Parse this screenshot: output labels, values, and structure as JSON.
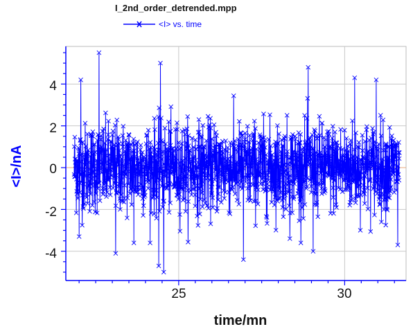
{
  "chart_data": {
    "type": "line",
    "title": "I_2nd_order_detrended.mpp",
    "xlabel": "time/mn",
    "ylabel": "<I>/nA",
    "xlim": [
      21.6,
      31.85
    ],
    "ylim": [
      -5.4,
      5.8
    ],
    "x_ticks": [
      25,
      30
    ],
    "x_tick_labels": [
      "25",
      "30"
    ],
    "y_ticks": [
      -4,
      -2,
      0,
      2,
      4
    ],
    "y_tick_labels": [
      "-4",
      "-2",
      "0",
      "2",
      "4"
    ],
    "grid": true,
    "legend_position": "top-left",
    "marker": "x",
    "colors": {
      "series": "#0000ff",
      "grid": "#c8c8c8",
      "axis": "#0000ff",
      "zero_line": "#e8a878",
      "text": "#111111"
    },
    "series": [
      {
        "name": "<I> vs. time",
        "x_start": 21.85,
        "x_end": 31.65,
        "points": 1500,
        "note_values": "dense noisy signal around 0 with std ~1.1",
        "highlight_points": [
          [
            22.6,
            5.5
          ],
          [
            24.45,
            5.0
          ],
          [
            28.9,
            4.8
          ],
          [
            22.05,
            4.2
          ],
          [
            22.0,
            -3.3
          ],
          [
            23.1,
            -4.1
          ],
          [
            24.55,
            -5.0
          ],
          [
            24.4,
            -4.7
          ],
          [
            26.95,
            -4.4
          ],
          [
            29.05,
            -4.0
          ],
          [
            30.3,
            4.3
          ],
          [
            31.6,
            -3.7
          ],
          [
            30.95,
            4.2
          ],
          [
            23.65,
            -3.6
          ],
          [
            28.35,
            -3.4
          ]
        ]
      }
    ]
  }
}
